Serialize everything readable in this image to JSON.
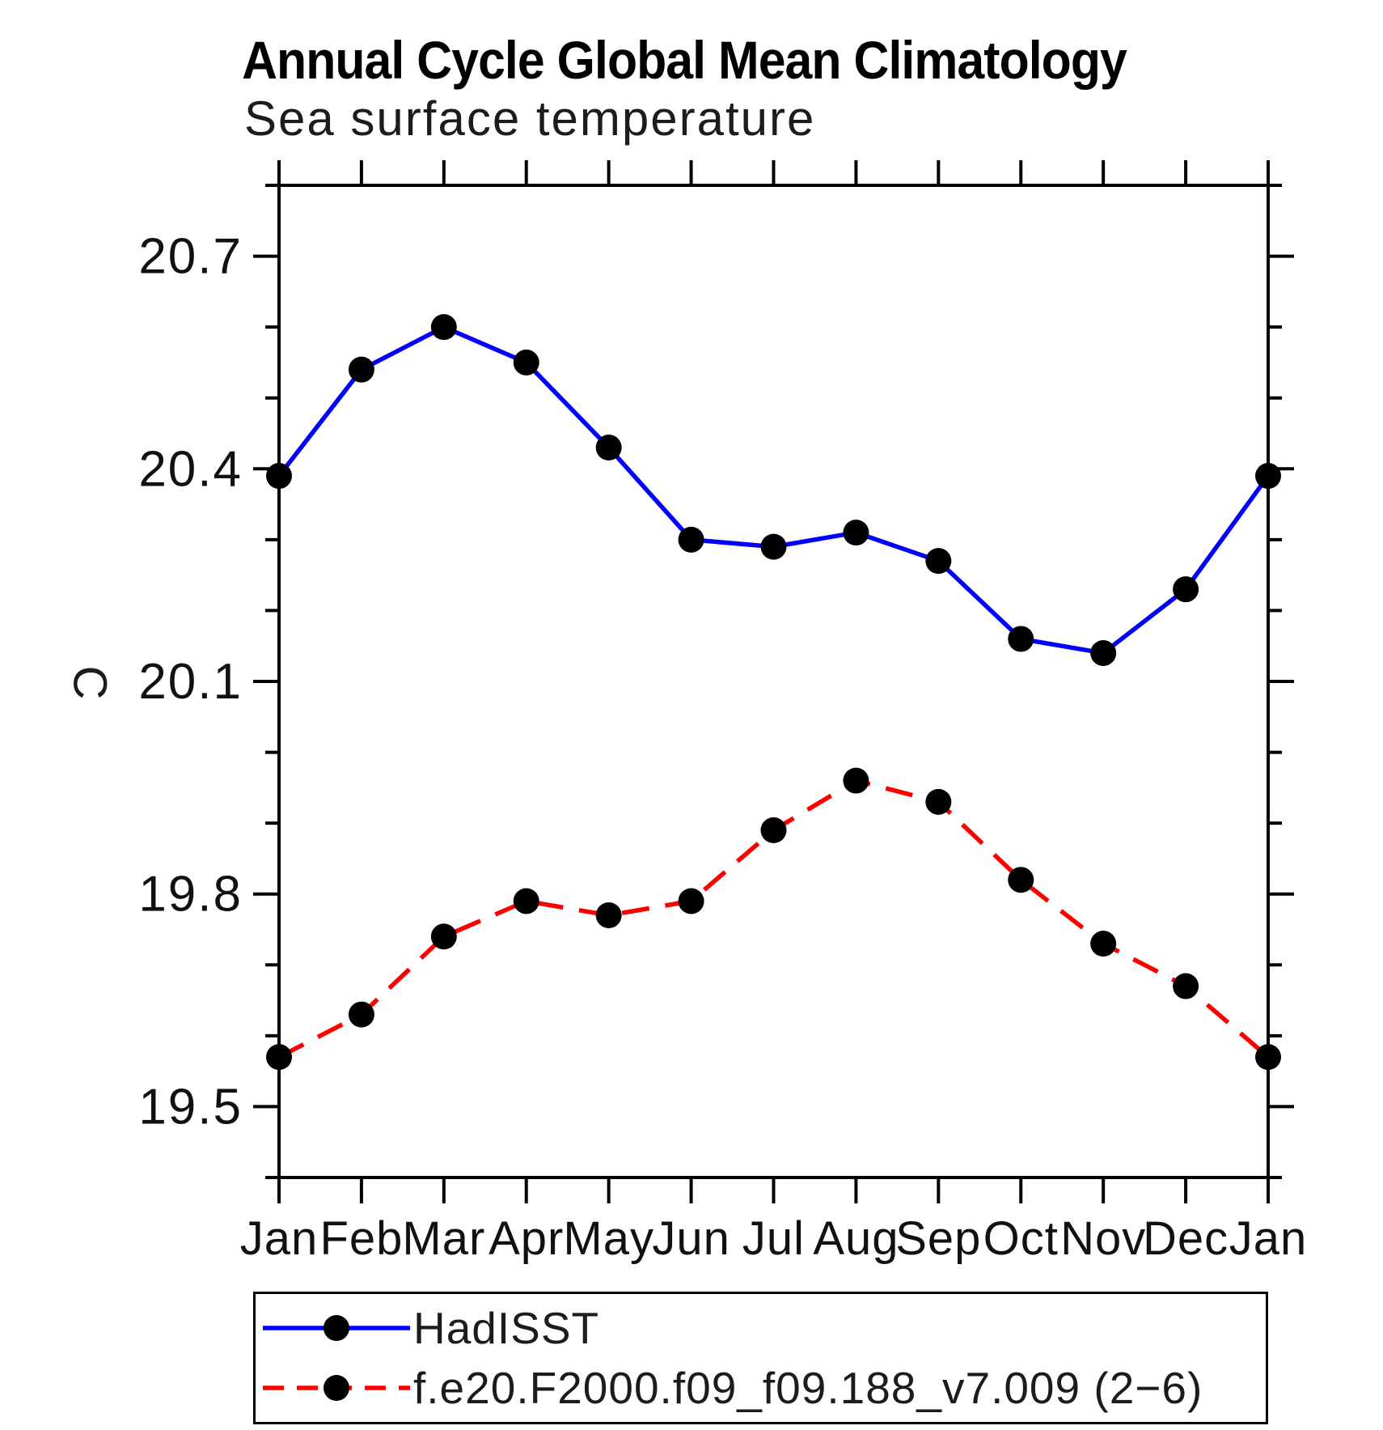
{
  "title": "Annual Cycle Global Mean Climatology",
  "subtitle": "Sea surface temperature",
  "y_axis_label": "C",
  "colors": {
    "hadisst_line": "#0000ff",
    "model_line": "#ff0000",
    "marker": "#000000",
    "axis": "#000000",
    "background": "#ffffff"
  },
  "legend": {
    "entries": [
      {
        "label": "HadISST",
        "color": "#0000ff",
        "style": "solid",
        "marker": "filled-circle"
      },
      {
        "label": "f.e20.F2000.f09_f09.188_v7.009 (2−6)",
        "color": "#ff0000",
        "style": "dashed",
        "marker": "filled-circle"
      }
    ]
  },
  "chart_data": {
    "type": "line",
    "title": "Annual Cycle Global Mean Climatology",
    "subtitle": "Sea surface temperature",
    "xlabel": "",
    "ylabel": "C",
    "categories": [
      "Jan",
      "Feb",
      "Mar",
      "Apr",
      "May",
      "Jun",
      "Jul",
      "Aug",
      "Sep",
      "Oct",
      "Nov",
      "Dec",
      "Jan"
    ],
    "series": [
      {
        "name": "HadISST",
        "color": "#0000ff",
        "line_style": "solid",
        "marker": "black-filled-circle",
        "values": [
          20.39,
          20.54,
          20.6,
          20.55,
          20.43,
          20.3,
          20.29,
          20.31,
          20.27,
          20.16,
          20.14,
          20.23,
          20.39
        ]
      },
      {
        "name": "f.e20.F2000.f09_f09.188_v7.009 (2−6)",
        "color": "#ff0000",
        "line_style": "dashed",
        "marker": "black-filled-circle",
        "values": [
          19.57,
          19.63,
          19.74,
          19.79,
          19.77,
          19.79,
          19.89,
          19.96,
          19.93,
          19.82,
          19.73,
          19.67,
          19.57
        ]
      }
    ],
    "ylim": [
      19.4,
      20.8
    ],
    "yticks_labeled": [
      19.5,
      19.8,
      20.1,
      20.4,
      20.7
    ],
    "ytick_labels": [
      "19.5",
      "19.8",
      "20.1",
      "20.4",
      "20.7"
    ],
    "ytick_minor_step": 0.1,
    "grid": false,
    "legend_position": "bottom"
  }
}
